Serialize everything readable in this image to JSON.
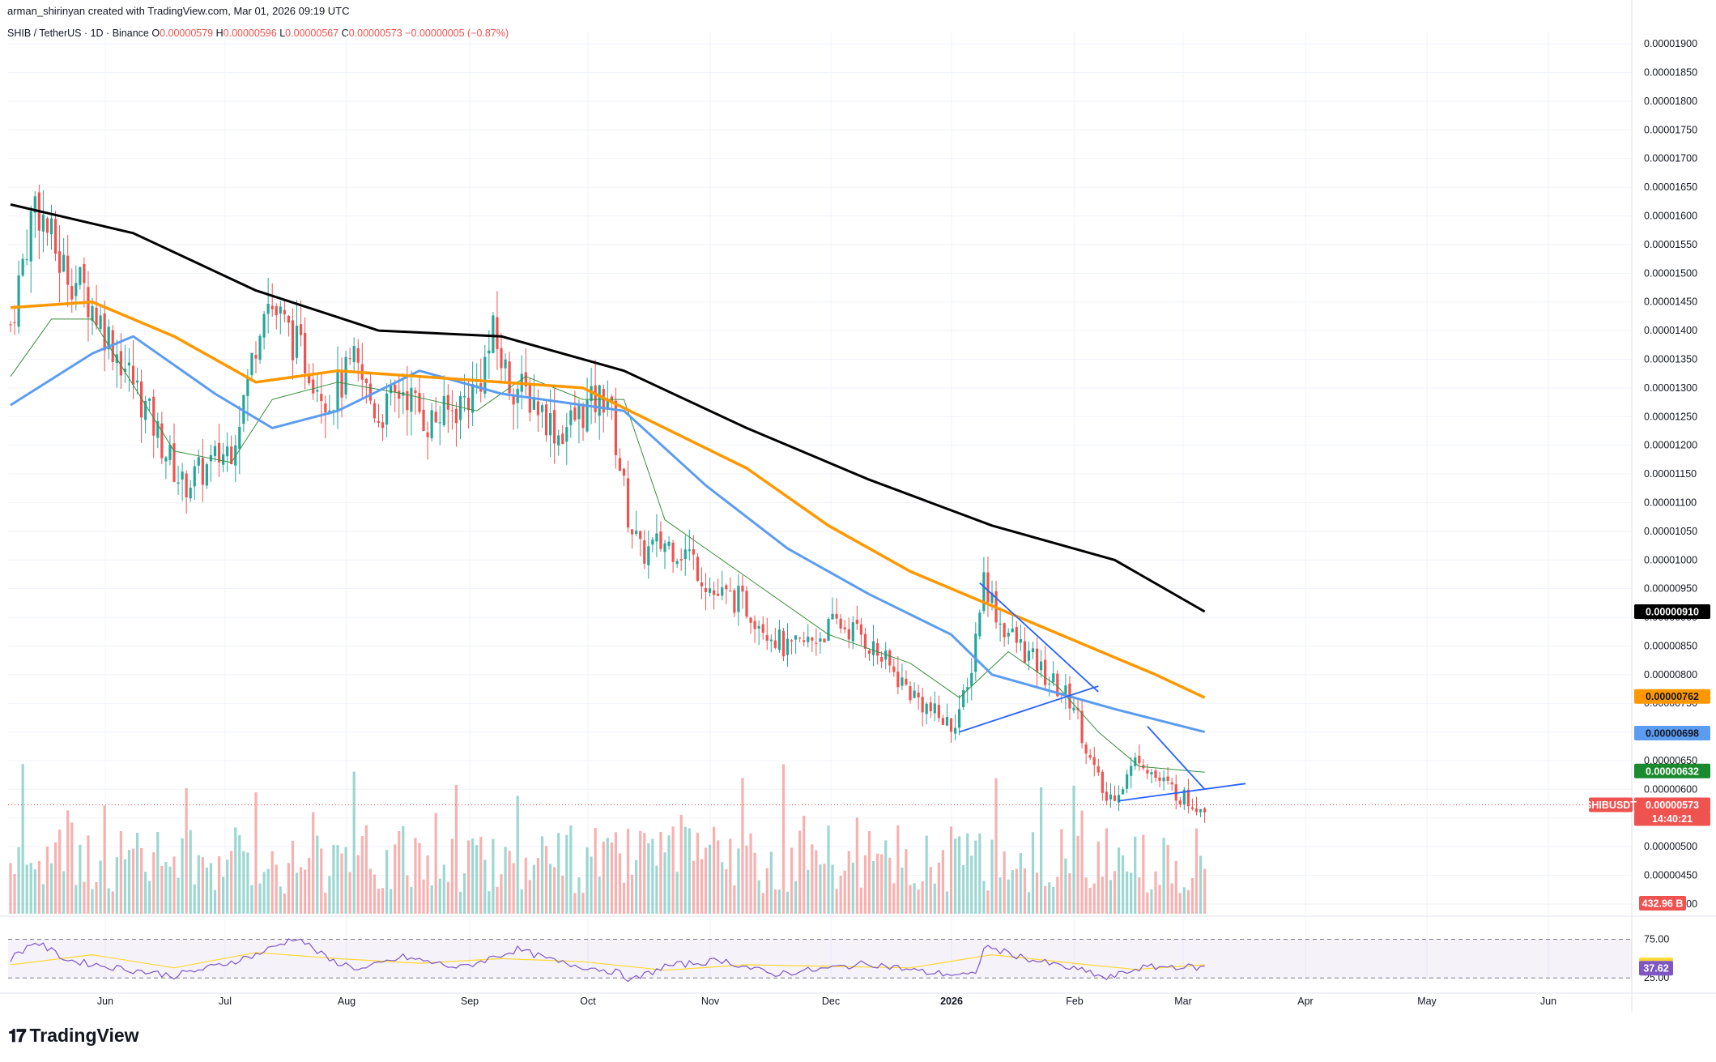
{
  "header": {
    "author": "arman_shirinyan",
    "created_text": "created with TradingView.com,",
    "datetime": "Mar 01, 2026 09:19 UTC"
  },
  "symbol": {
    "name": "SHIB / TetherUS",
    "interval": "1D",
    "exchange": "Binance",
    "o_label": "O",
    "o_value": "0.00000579",
    "h_label": "H",
    "h_value": "0.00000596",
    "l_label": "L",
    "l_value": "0.00000567",
    "c_label": "C",
    "c_value": "0.00000573",
    "change": "−0.00000005 (−0.87%)"
  },
  "tags": {
    "ma200": "0.00000910",
    "ma100": "0.00000762",
    "ma50": "0.00000698",
    "ma20": "0.00000632",
    "symbol_badge": "SHIBUSDT",
    "last_price": "0.00000573",
    "countdown": "14:40:21",
    "volume": "432.96 B"
  },
  "rsi_tags": {
    "upper": "75.00",
    "lower": "25.00",
    "sma": "41.84",
    "rsi": "37.62"
  },
  "colors": {
    "up": "#26a69a",
    "down": "#ef5350",
    "ma200": "#000000",
    "ma100": "#ff9800",
    "ma50": "#5b9cf0",
    "ma20": "#388e3c",
    "trendline": "#2962ff",
    "rsi": "#7e57c2",
    "rsi_sma": "#fdd835"
  },
  "logo": {
    "text": "TradingView",
    "icon": "tradingview-logo-icon"
  },
  "chart_data": {
    "type": "candlestick",
    "ylim": [
      4e-06,
      1.92e-05
    ],
    "y_ticks": [
      "0.00001900",
      "0.00001850",
      "0.00001800",
      "0.00001750",
      "0.00001700",
      "0.00001650",
      "0.00001600",
      "0.00001550",
      "0.00001500",
      "0.00001450",
      "0.00001400",
      "0.00001350",
      "0.00001300",
      "0.00001250",
      "0.00001200",
      "0.00001150",
      "0.00001100",
      "0.00001050",
      "0.00001000",
      "0.00000950",
      "0.00000900",
      "0.00000850",
      "0.00000800",
      "0.00000750",
      "0.00000700",
      "0.00000650",
      "0.00000600",
      "0.00000550",
      "0.00000500",
      "0.00000450",
      "0.00000400"
    ],
    "x_ticks": [
      "Jun",
      "Jul",
      "Aug",
      "Sep",
      "Oct",
      "Nov",
      "Dec",
      "2026",
      "Feb",
      "Mar",
      "Apr",
      "May",
      "Jun"
    ],
    "close_path": [
      [
        0,
        1.41e-05
      ],
      [
        6,
        1.63e-05
      ],
      [
        12,
        1.52e-05
      ],
      [
        18,
        1.47e-05
      ],
      [
        24,
        1.39e-05
      ],
      [
        30,
        1.31e-05
      ],
      [
        36,
        1.22e-05
      ],
      [
        42,
        1.13e-05
      ],
      [
        48,
        1.16e-05
      ],
      [
        54,
        1.2e-05
      ],
      [
        58,
        1.31e-05
      ],
      [
        62,
        1.46e-05
      ],
      [
        66,
        1.42e-05
      ],
      [
        72,
        1.35e-05
      ],
      [
        78,
        1.28e-05
      ],
      [
        84,
        1.34e-05
      ],
      [
        90,
        1.25e-05
      ],
      [
        96,
        1.3e-05
      ],
      [
        102,
        1.24e-05
      ],
      [
        108,
        1.26e-05
      ],
      [
        114,
        1.3e-05
      ],
      [
        118,
        1.39e-05
      ],
      [
        122,
        1.31e-05
      ],
      [
        128,
        1.28e-05
      ],
      [
        134,
        1.22e-05
      ],
      [
        140,
        1.26e-05
      ],
      [
        146,
        1.29e-05
      ],
      [
        151,
        1.08e-05
      ],
      [
        154,
        1.01e-05
      ],
      [
        160,
        1.03e-05
      ],
      [
        166,
        1.01e-05
      ],
      [
        172,
        9.4e-06
      ],
      [
        178,
        9.3e-06
      ],
      [
        184,
        8.9e-06
      ],
      [
        190,
        8.4e-06
      ],
      [
        196,
        8.6e-06
      ],
      [
        202,
        8.9e-06
      ],
      [
        208,
        8.7e-06
      ],
      [
        214,
        8.2e-06
      ],
      [
        220,
        7.7e-06
      ],
      [
        226,
        7.3e-06
      ],
      [
        230,
        7.1e-06
      ],
      [
        234,
        7.7e-06
      ],
      [
        238,
        9.7e-06
      ],
      [
        242,
        8.9e-06
      ],
      [
        248,
        8.4e-06
      ],
      [
        254,
        7.9e-06
      ],
      [
        260,
        7.5e-06
      ],
      [
        264,
        6.5e-06
      ],
      [
        268,
        5.8e-06
      ],
      [
        272,
        6.1e-06
      ],
      [
        276,
        6.6e-06
      ],
      [
        280,
        6.2e-06
      ],
      [
        284,
        6e-06
      ],
      [
        288,
        5.8e-06
      ],
      [
        292,
        5.7e-06
      ]
    ],
    "ma200_path": [
      [
        0,
        1.62e-05
      ],
      [
        30,
        1.57e-05
      ],
      [
        60,
        1.47e-05
      ],
      [
        90,
        1.4e-05
      ],
      [
        120,
        1.39e-05
      ],
      [
        150,
        1.33e-05
      ],
      [
        180,
        1.23e-05
      ],
      [
        210,
        1.14e-05
      ],
      [
        240,
        1.06e-05
      ],
      [
        270,
        1e-05
      ],
      [
        292,
        9.1e-06
      ]
    ],
    "ma100_path": [
      [
        0,
        1.44e-05
      ],
      [
        20,
        1.45e-05
      ],
      [
        40,
        1.39e-05
      ],
      [
        60,
        1.31e-05
      ],
      [
        80,
        1.33e-05
      ],
      [
        100,
        1.32e-05
      ],
      [
        120,
        1.31e-05
      ],
      [
        140,
        1.3e-05
      ],
      [
        160,
        1.23e-05
      ],
      [
        180,
        1.16e-05
      ],
      [
        200,
        1.06e-05
      ],
      [
        220,
        9.8e-06
      ],
      [
        240,
        9.2e-06
      ],
      [
        260,
        8.6e-06
      ],
      [
        280,
        8e-06
      ],
      [
        292,
        7.6e-06
      ]
    ],
    "ma50_path": [
      [
        0,
        1.27e-05
      ],
      [
        20,
        1.36e-05
      ],
      [
        30,
        1.39e-05
      ],
      [
        50,
        1.29e-05
      ],
      [
        64,
        1.23e-05
      ],
      [
        80,
        1.26e-05
      ],
      [
        100,
        1.33e-05
      ],
      [
        120,
        1.29e-05
      ],
      [
        140,
        1.27e-05
      ],
      [
        150,
        1.26e-05
      ],
      [
        170,
        1.13e-05
      ],
      [
        190,
        1.02e-05
      ],
      [
        210,
        9.4e-06
      ],
      [
        230,
        8.7e-06
      ],
      [
        240,
        8e-06
      ],
      [
        250,
        7.8e-06
      ],
      [
        270,
        7.4e-06
      ],
      [
        292,
        7e-06
      ]
    ],
    "ma20_path": [
      [
        0,
        1.32e-05
      ],
      [
        10,
        1.42e-05
      ],
      [
        20,
        1.42e-05
      ],
      [
        40,
        1.19e-05
      ],
      [
        54,
        1.17e-05
      ],
      [
        64,
        1.28e-05
      ],
      [
        80,
        1.31e-05
      ],
      [
        96,
        1.29e-05
      ],
      [
        114,
        1.26e-05
      ],
      [
        126,
        1.32e-05
      ],
      [
        140,
        1.28e-05
      ],
      [
        150,
        1.28e-05
      ],
      [
        160,
        1.07e-05
      ],
      [
        180,
        9.7e-06
      ],
      [
        200,
        8.7e-06
      ],
      [
        220,
        8.2e-06
      ],
      [
        232,
        7.6e-06
      ],
      [
        244,
        8.4e-06
      ],
      [
        256,
        7.8e-06
      ],
      [
        266,
        7e-06
      ],
      [
        276,
        6.4e-06
      ],
      [
        292,
        6.3e-06
      ]
    ],
    "trendlines": [
      [
        [
          232,
          7e-06
        ],
        [
          266,
          7.8e-06
        ]
      ],
      [
        [
          237,
          9.6e-06
        ],
        [
          266,
          7.7e-06
        ]
      ],
      [
        [
          271,
          5.8e-06
        ],
        [
          302,
          6.1e-06
        ]
      ],
      [
        [
          278,
          7.1e-06
        ],
        [
          292,
          6e-06
        ]
      ]
    ],
    "rsi_ylim": [
      20,
      85
    ],
    "rsi_levels": [
      75,
      25
    ],
    "rsi_path": [
      [
        0,
        50
      ],
      [
        6,
        72
      ],
      [
        14,
        48
      ],
      [
        26,
        38
      ],
      [
        40,
        28
      ],
      [
        50,
        40
      ],
      [
        60,
        55
      ],
      [
        70,
        78
      ],
      [
        78,
        48
      ],
      [
        86,
        36
      ],
      [
        96,
        52
      ],
      [
        110,
        38
      ],
      [
        124,
        62
      ],
      [
        134,
        45
      ],
      [
        148,
        33
      ],
      [
        152,
        22
      ],
      [
        160,
        40
      ],
      [
        174,
        48
      ],
      [
        186,
        30
      ],
      [
        198,
        36
      ],
      [
        210,
        44
      ],
      [
        224,
        32
      ],
      [
        236,
        28
      ],
      [
        238,
        66
      ],
      [
        250,
        48
      ],
      [
        264,
        32
      ],
      [
        268,
        24
      ],
      [
        276,
        38
      ],
      [
        284,
        40
      ],
      [
        292,
        38
      ]
    ],
    "rsi_sma_path": [
      [
        0,
        42
      ],
      [
        20,
        55
      ],
      [
        40,
        38
      ],
      [
        60,
        58
      ],
      [
        80,
        50
      ],
      [
        100,
        44
      ],
      [
        120,
        50
      ],
      [
        140,
        46
      ],
      [
        160,
        35
      ],
      [
        180,
        42
      ],
      [
        200,
        40
      ],
      [
        220,
        38
      ],
      [
        240,
        55
      ],
      [
        260,
        44
      ],
      [
        275,
        36
      ],
      [
        292,
        42
      ]
    ]
  }
}
